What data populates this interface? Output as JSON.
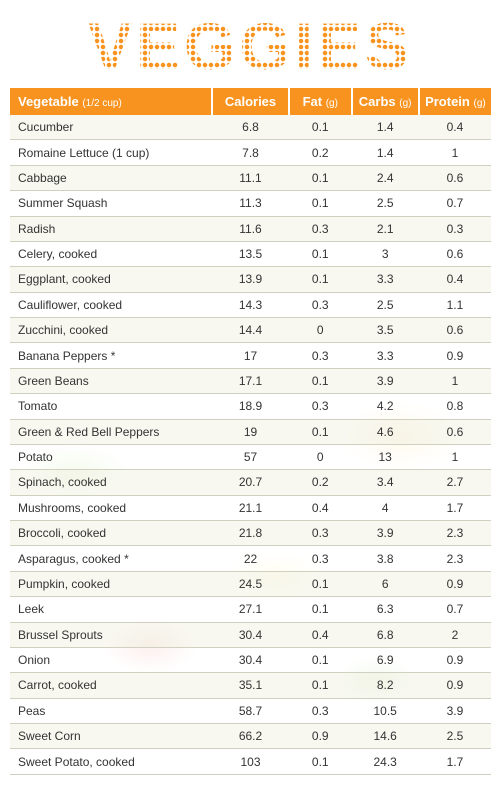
{
  "title": "VEGGIES",
  "header": {
    "vegetable_label": "Vegetable",
    "vegetable_sub": "(1/2 cup)",
    "calories_label": "Calories",
    "fat_label": "Fat",
    "fat_sub": "(g)",
    "carbs_label": "Carbs",
    "carbs_sub": "(g)",
    "protein_label": "Protein",
    "protein_sub": "(g)"
  },
  "colors": {
    "accent": "#f7931e",
    "header_text": "#ffffff",
    "row_odd_bg": "rgba(245,245,235,0.7)",
    "row_even_bg": "rgba(255,255,255,0.5)",
    "border": "#d0d0c0",
    "cell_text": "#333333"
  },
  "column_widths_pct": {
    "vegetable": 42,
    "calories": 16,
    "fat": 13,
    "carbs": 14,
    "protein": 15
  },
  "font_sizes_pt": {
    "title": 50,
    "header": 10,
    "header_sub": 7.5,
    "cell": 9
  },
  "rows": [
    {
      "name": "Cucumber",
      "calories": "6.8",
      "fat": "0.1",
      "carbs": "1.4",
      "protein": "0.4"
    },
    {
      "name": "Romaine Lettuce (1 cup)",
      "calories": "7.8",
      "fat": "0.2",
      "carbs": "1.4",
      "protein": "1"
    },
    {
      "name": "Cabbage",
      "calories": "11.1",
      "fat": "0.1",
      "carbs": "2.4",
      "protein": "0.6"
    },
    {
      "name": "Summer Squash",
      "calories": "11.3",
      "fat": "0.1",
      "carbs": "2.5",
      "protein": "0.7"
    },
    {
      "name": "Radish",
      "calories": "11.6",
      "fat": "0.3",
      "carbs": "2.1",
      "protein": "0.3"
    },
    {
      "name": "Celery, cooked",
      "calories": "13.5",
      "fat": "0.1",
      "carbs": "3",
      "protein": "0.6"
    },
    {
      "name": "Eggplant, cooked",
      "calories": "13.9",
      "fat": "0.1",
      "carbs": "3.3",
      "protein": "0.4"
    },
    {
      "name": "Cauliflower, cooked",
      "calories": "14.3",
      "fat": "0.3",
      "carbs": "2.5",
      "protein": "1.1"
    },
    {
      "name": "Zucchini, cooked",
      "calories": "14.4",
      "fat": "0",
      "carbs": "3.5",
      "protein": "0.6"
    },
    {
      "name": "Banana Peppers *",
      "calories": "17",
      "fat": "0.3",
      "carbs": "3.3",
      "protein": "0.9"
    },
    {
      "name": "Green Beans",
      "calories": "17.1",
      "fat": "0.1",
      "carbs": "3.9",
      "protein": "1"
    },
    {
      "name": "Tomato",
      "calories": "18.9",
      "fat": "0.3",
      "carbs": "4.2",
      "protein": "0.8"
    },
    {
      "name": "Green & Red Bell Peppers",
      "calories": "19",
      "fat": "0.1",
      "carbs": "4.6",
      "protein": "0.6"
    },
    {
      "name": "Potato",
      "calories": "57",
      "fat": "0",
      "carbs": "13",
      "protein": "1"
    },
    {
      "name": "Spinach, cooked",
      "calories": "20.7",
      "fat": "0.2",
      "carbs": "3.4",
      "protein": "2.7"
    },
    {
      "name": "Mushrooms, cooked",
      "calories": "21.1",
      "fat": "0.4",
      "carbs": "4",
      "protein": "1.7"
    },
    {
      "name": "Broccoli, cooked",
      "calories": "21.8",
      "fat": "0.3",
      "carbs": "3.9",
      "protein": "2.3"
    },
    {
      "name": "Asparagus, cooked *",
      "calories": "22",
      "fat": "0.3",
      "carbs": "3.8",
      "protein": "2.3"
    },
    {
      "name": "Pumpkin, cooked",
      "calories": "24.5",
      "fat": "0.1",
      "carbs": "6",
      "protein": "0.9"
    },
    {
      "name": "Leek",
      "calories": "27.1",
      "fat": "0.1",
      "carbs": "6.3",
      "protein": "0.7"
    },
    {
      "name": "Brussel Sprouts",
      "calories": "30.4",
      "fat": "0.4",
      "carbs": "6.8",
      "protein": "2"
    },
    {
      "name": "Onion",
      "calories": "30.4",
      "fat": "0.1",
      "carbs": "6.9",
      "protein": "0.9"
    },
    {
      "name": "Carrot, cooked",
      "calories": "35.1",
      "fat": "0.1",
      "carbs": "8.2",
      "protein": "0.9"
    },
    {
      "name": "Peas",
      "calories": "58.7",
      "fat": "0.3",
      "carbs": "10.5",
      "protein": "3.9"
    },
    {
      "name": "Sweet Corn",
      "calories": "66.2",
      "fat": "0.9",
      "carbs": "14.6",
      "protein": "2.5"
    },
    {
      "name": "Sweet Potato, cooked",
      "calories": "103",
      "fat": "0.1",
      "carbs": "24.3",
      "protein": "1.7"
    }
  ]
}
